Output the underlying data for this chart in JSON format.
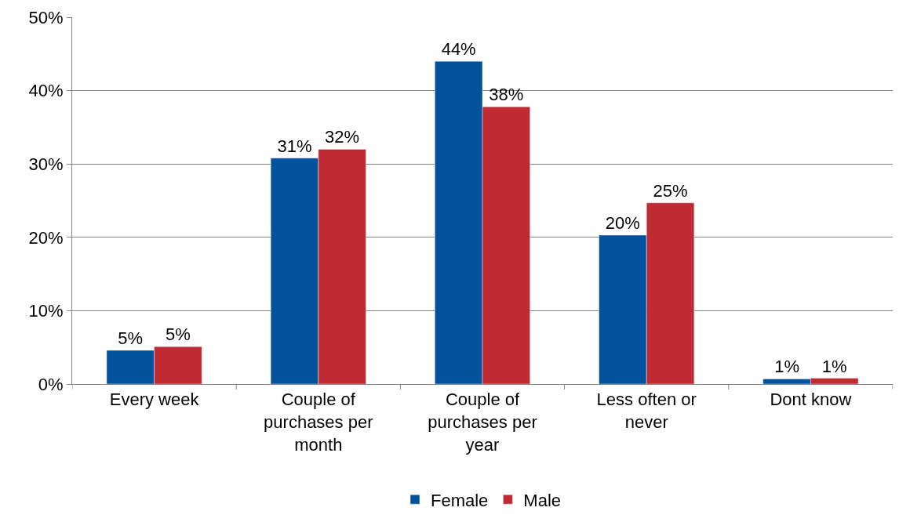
{
  "chart_data": {
    "type": "bar",
    "categories": [
      "Every week",
      "Couple of purchases per month",
      "Couple of purchases per year",
      "Less often or never",
      "Dont know"
    ],
    "series": [
      {
        "name": "Female",
        "color": "#00529b",
        "values": [
          4.6,
          30.8,
          44.0,
          20.3,
          0.7
        ],
        "value_labels": [
          "5%",
          "31%",
          "44%",
          "20%",
          "1%"
        ]
      },
      {
        "name": "Male",
        "color": "#bf2a33",
        "values": [
          5.1,
          32.0,
          37.8,
          24.7,
          0.8
        ],
        "value_labels": [
          "5%",
          "32%",
          "38%",
          "25%",
          "1%"
        ]
      }
    ],
    "ylim": [
      0,
      50
    ],
    "yticks": [
      {
        "value": 0,
        "label": "0%"
      },
      {
        "value": 10,
        "label": "10%"
      },
      {
        "value": 20,
        "label": "20%"
      },
      {
        "value": 30,
        "label": "30%"
      },
      {
        "value": 40,
        "label": "40%"
      },
      {
        "value": 50,
        "label": "50%"
      }
    ],
    "grid": "y",
    "legend": "bottom"
  }
}
